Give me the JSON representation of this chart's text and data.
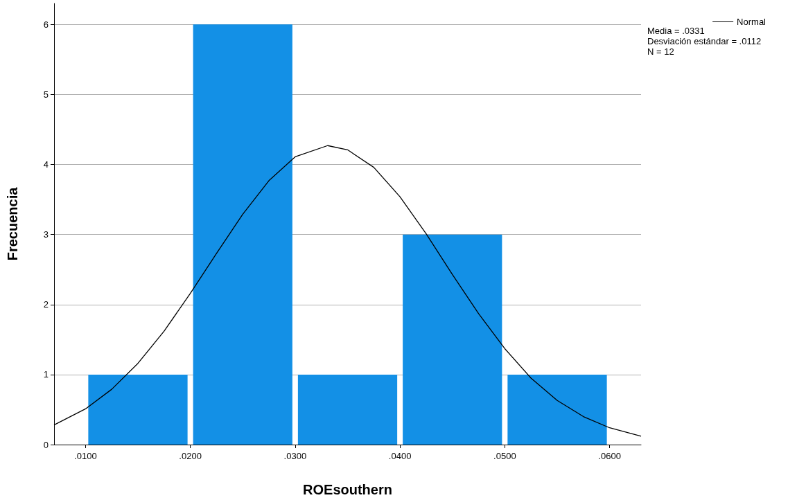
{
  "chart_data": {
    "type": "histogram",
    "xlabel": "ROEsouthern",
    "ylabel": "Frecuencia",
    "bins": [
      0.01,
      0.02,
      0.03,
      0.04,
      0.05,
      0.06
    ],
    "values": [
      1,
      6,
      1,
      3,
      1
    ],
    "color": "#1390e6",
    "series": [
      {
        "type": "line",
        "name": "Normal",
        "color": "#000000",
        "x": [
          0.007,
          0.01,
          0.0125,
          0.015,
          0.0175,
          0.02,
          0.0225,
          0.025,
          0.0275,
          0.03,
          0.0331,
          0.035,
          0.0375,
          0.04,
          0.0425,
          0.045,
          0.0475,
          0.05,
          0.0525,
          0.055,
          0.0575,
          0.06,
          0.063
        ],
        "values": [
          0.28,
          0.51,
          0.79,
          1.16,
          1.62,
          2.16,
          2.73,
          3.29,
          3.77,
          4.11,
          4.27,
          4.21,
          3.96,
          3.54,
          3.01,
          2.43,
          1.87,
          1.37,
          0.95,
          0.63,
          0.4,
          0.24,
          0.12
        ]
      }
    ],
    "xlim": [
      0.007,
      0.063
    ],
    "xticks": [
      {
        "value": 0.01,
        "label": ".0100"
      },
      {
        "value": 0.02,
        "label": ".0200"
      },
      {
        "value": 0.03,
        "label": ".0300"
      },
      {
        "value": 0.04,
        "label": ".0400"
      },
      {
        "value": 0.05,
        "label": ".0500"
      },
      {
        "value": 0.06,
        "label": ".0600"
      }
    ],
    "ylim": [
      0,
      6.3
    ],
    "yticks": [
      0,
      1,
      2,
      3,
      4,
      5,
      6
    ],
    "grid": "y",
    "legend": "top right",
    "marker": "none",
    "line_style": "solid",
    "annotations": [
      "Media = .0331",
      "Desviación estándar = .0112",
      "N = 12"
    ]
  }
}
